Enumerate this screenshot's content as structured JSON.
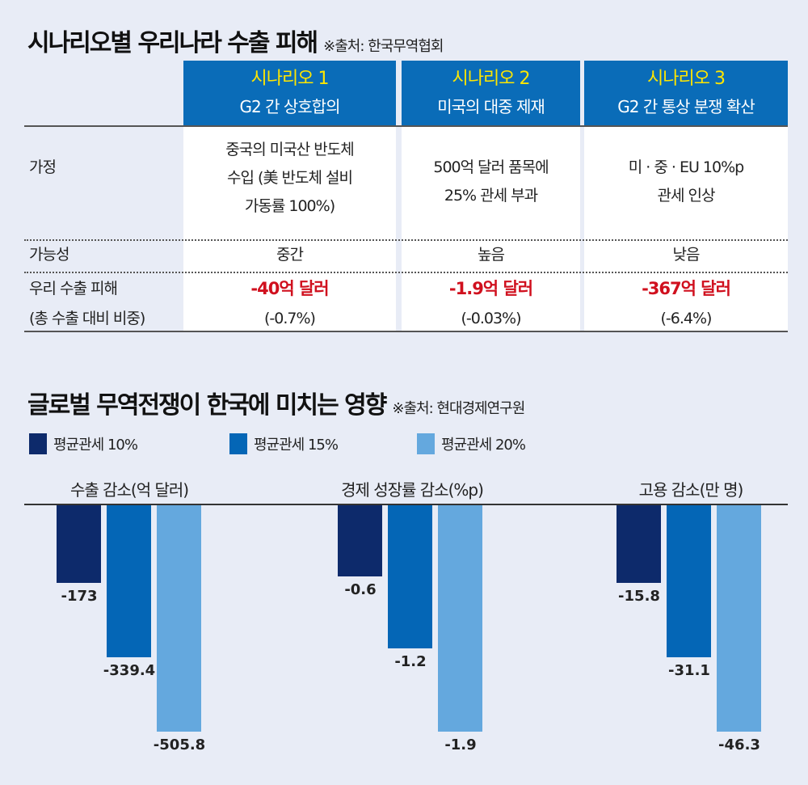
{
  "table": {
    "title": "시나리오별 우리나라 수출 피해",
    "source": "※출처: 한국무역협회",
    "headers": [
      {
        "name": "시나리오 1",
        "desc": "G2 간 상호합의"
      },
      {
        "name": "시나리오 2",
        "desc": "미국의 대중 제재"
      },
      {
        "name": "시나리오 3",
        "desc": "G2 간 통상 분쟁 확산"
      }
    ],
    "row_labels": {
      "assumption": "가정",
      "likelihood": "가능성",
      "damage": "우리 수출 피해",
      "share": "(총 수출 대비 비중)"
    },
    "assumption": [
      [
        "중국의 미국산 반도체",
        "수입 (美 반도체 설비",
        "가동률 100%)"
      ],
      [
        "500억 달러 품목에",
        "25% 관세 부과"
      ],
      [
        "미 · 중 · EU 10%p",
        "관세 인상"
      ]
    ],
    "likelihood": [
      "중간",
      "높음",
      "낮음"
    ],
    "damage": [
      "-40억 달러",
      "-1.9억 달러",
      "-367억 달러"
    ],
    "share": [
      "(-0.7%)",
      "(-0.03%)",
      "(-6.4%)"
    ]
  },
  "chart_data": {
    "type": "bar",
    "title": "글로벌 무역전쟁이 한국에 미치는 영향",
    "source": "※출처: 현대경제연구원",
    "legend": [
      "평균관세 10%",
      "평균관세 15%",
      "평균관세 20%"
    ],
    "colors": [
      "#0d2a6b",
      "#0466b6",
      "#64a8de"
    ],
    "panels": [
      {
        "title": "수출 감소(억 달러)",
        "values": [
          -173,
          -339.4,
          -505.8
        ],
        "labels": [
          "-173",
          "-339.4",
          "-505.8"
        ]
      },
      {
        "title": "경제 성장률 감소(%p)",
        "values": [
          -0.6,
          -1.2,
          -1.9
        ],
        "labels": [
          "-0.6",
          "-1.2",
          "-1.9"
        ]
      },
      {
        "title": "고용 감소(만 명)",
        "values": [
          -15.8,
          -31.1,
          -46.3
        ],
        "labels": [
          "-15.8",
          "-31.1",
          "-46.3"
        ]
      }
    ]
  }
}
